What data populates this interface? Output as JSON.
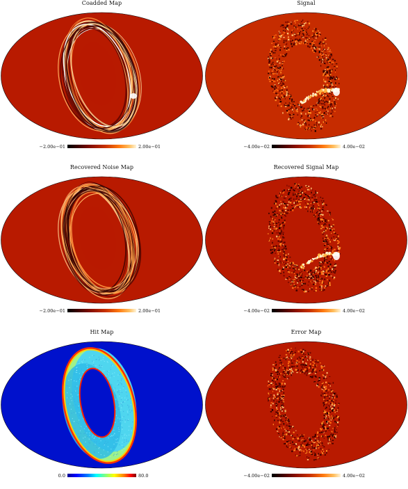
{
  "panels": [
    {
      "title": "Coadded Map",
      "cmin": "−2.00e−01",
      "cmax": "2.00e−01",
      "colormap": "heat",
      "background": "#b81a00",
      "feature": "rings-bright"
    },
    {
      "title": "Signal",
      "cmin": "−4.00e−02",
      "cmax": "4.00e−02",
      "colormap": "heat",
      "background": "#c62c00",
      "feature": "speckle-signal"
    },
    {
      "title": "Recovered Noise Map",
      "cmin": "−2.00e−01",
      "cmax": "2.00e−01",
      "colormap": "heat",
      "background": "#b81a00",
      "feature": "rings"
    },
    {
      "title": "Recovered Signal Map",
      "cmin": "−4.00e−02",
      "cmax": "4.00e−02",
      "colormap": "heat",
      "background": "#b81a00",
      "feature": "speckle-signal"
    },
    {
      "title": "Hit Map",
      "cmin": "0.0",
      "cmax": "80.0",
      "colormap": "jet",
      "background": "#0011cc",
      "feature": "hits"
    },
    {
      "title": "Error Map",
      "cmin": "−4.00e−02",
      "cmax": "4.00e−02",
      "colormap": "heat",
      "background": "#b81a00",
      "feature": "speckle"
    }
  ]
}
